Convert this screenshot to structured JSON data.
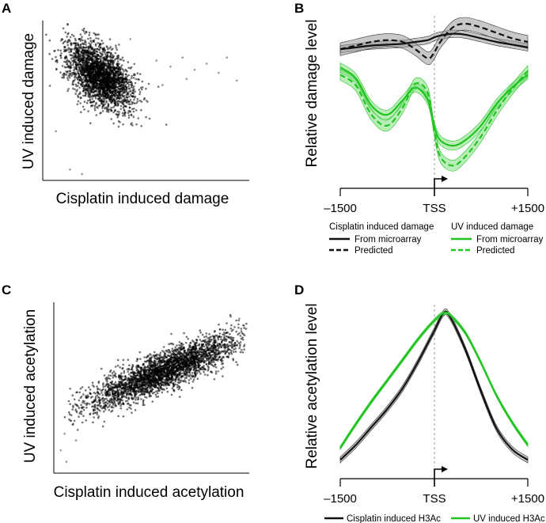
{
  "colors": {
    "black": "#111111",
    "green": "#22c422",
    "band_black": "#9a9a9a",
    "band_green": "#7fe07f",
    "point": "#000000"
  },
  "chart_data": [
    {
      "panel": "A",
      "type": "scatter",
      "xlabel": "Cisplatin induced damage",
      "ylabel": "UV induced damage",
      "correlation": "negative",
      "x_range": [
        0,
        1
      ],
      "y_range": [
        0,
        1
      ],
      "cloud": {
        "center": [
          0.27,
          0.66
        ],
        "sd_major": 0.12,
        "sd_minor": 0.065,
        "angle_deg": -62,
        "n_points": 2600
      },
      "outliers": [
        [
          0.55,
          0.76
        ],
        [
          0.62,
          0.72
        ],
        [
          0.68,
          0.78
        ],
        [
          0.74,
          0.7
        ],
        [
          0.8,
          0.74
        ],
        [
          0.86,
          0.68
        ],
        [
          0.9,
          0.78
        ],
        [
          0.95,
          0.63
        ],
        [
          0.58,
          0.6
        ],
        [
          0.7,
          0.64
        ],
        [
          0.12,
          0.05
        ],
        [
          0.18,
          0.02
        ],
        [
          0.05,
          0.3
        ],
        [
          0.42,
          0.9
        ],
        [
          0.5,
          0.5
        ]
      ]
    },
    {
      "panel": "B",
      "type": "line",
      "ylabel": "Relative damage level",
      "x_ticks": [
        -1500,
        0,
        1500
      ],
      "x_tick_labels": [
        "–1500",
        "TSS",
        "+1500"
      ],
      "xlim": [
        -1500,
        1500
      ],
      "ylim": [
        0,
        1
      ],
      "x": [
        -1500,
        -1250,
        -1000,
        -750,
        -500,
        -300,
        -100,
        0,
        100,
        300,
        500,
        750,
        1000,
        1250,
        1500
      ],
      "series": [
        {
          "name": "Cisplatin induced damage – From microarray",
          "color": "black",
          "dash": false,
          "band": 0.02,
          "values": [
            0.86,
            0.87,
            0.88,
            0.885,
            0.89,
            0.9,
            0.91,
            0.925,
            0.935,
            0.945,
            0.94,
            0.92,
            0.9,
            0.885,
            0.87
          ]
        },
        {
          "name": "Cisplatin induced damage – Predicted",
          "color": "black",
          "dash": true,
          "band": 0.035,
          "values": [
            0.86,
            0.88,
            0.9,
            0.91,
            0.9,
            0.86,
            0.81,
            0.84,
            0.9,
            0.98,
            1.0,
            0.98,
            0.95,
            0.92,
            0.9
          ]
        },
        {
          "name": "UV induced damage – From microarray",
          "color": "green",
          "dash": false,
          "band": 0.025,
          "values": [
            0.76,
            0.7,
            0.55,
            0.5,
            0.58,
            0.65,
            0.58,
            0.44,
            0.36,
            0.33,
            0.36,
            0.44,
            0.56,
            0.65,
            0.72
          ]
        },
        {
          "name": "UV induced damage – Predicted",
          "color": "green",
          "dash": true,
          "band": 0.03,
          "values": [
            0.72,
            0.66,
            0.5,
            0.44,
            0.54,
            0.67,
            0.62,
            0.42,
            0.27,
            0.22,
            0.27,
            0.38,
            0.52,
            0.64,
            0.74
          ]
        }
      ],
      "legend": {
        "group1_title": "Cisplatin induced damage",
        "group2_title": "UV induced damage",
        "solid_label": "From microarray",
        "dashed_label": "Predicted"
      }
    },
    {
      "panel": "C",
      "type": "scatter",
      "xlabel": "Cisplatin induced acetylation",
      "ylabel": "UV induced acetylation",
      "correlation": "positive",
      "x_range": [
        0,
        1
      ],
      "y_range": [
        0,
        1
      ],
      "cloud": {
        "center": [
          0.56,
          0.6
        ],
        "sd_major": 0.22,
        "sd_minor": 0.052,
        "angle_deg": 27,
        "n_points": 3000
      },
      "outliers": [
        [
          0.02,
          0.12
        ],
        [
          0.05,
          0.05
        ],
        [
          0.04,
          0.22
        ],
        [
          0.1,
          0.18
        ],
        [
          0.96,
          0.92
        ],
        [
          0.98,
          0.88
        ],
        [
          0.3,
          0.5
        ],
        [
          0.85,
          0.6
        ],
        [
          0.07,
          0.3
        ],
        [
          0.15,
          0.45
        ]
      ]
    },
    {
      "panel": "D",
      "type": "line",
      "ylabel": "Relative acetylation level",
      "x_ticks": [
        -1500,
        0,
        1500
      ],
      "x_tick_labels": [
        "–1500",
        "TSS",
        "+1500"
      ],
      "xlim": [
        -1500,
        1500
      ],
      "ylim": [
        0,
        1
      ],
      "x": [
        -1500,
        -1250,
        -1000,
        -750,
        -500,
        -250,
        0,
        150,
        250,
        500,
        750,
        1000,
        1250,
        1500
      ],
      "series": [
        {
          "name": "Cisplatin induced H3Ac",
          "color": "black",
          "dash": false,
          "band": 0.02,
          "values": [
            0.02,
            0.12,
            0.24,
            0.36,
            0.5,
            0.68,
            0.88,
            1.0,
            0.98,
            0.76,
            0.48,
            0.23,
            0.09,
            0.02
          ]
        },
        {
          "name": "UV induced H3Ac",
          "color": "green",
          "dash": false,
          "band": 0.012,
          "values": [
            0.1,
            0.26,
            0.41,
            0.55,
            0.69,
            0.83,
            0.95,
            1.0,
            0.99,
            0.87,
            0.67,
            0.45,
            0.27,
            0.12
          ]
        }
      ],
      "legend": {
        "labels": [
          "Cisplatin induced H3Ac",
          "UV induced H3Ac"
        ]
      }
    }
  ]
}
